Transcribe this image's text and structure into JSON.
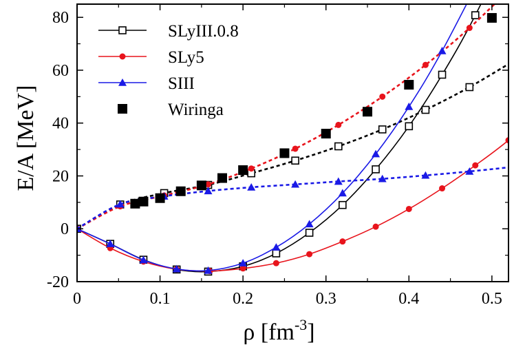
{
  "chart_data": {
    "type": "line",
    "title": "",
    "xlabel": {
      "base": "ρ [fm",
      "sup": "-3",
      "suffix": "]"
    },
    "ylabel": "E/A [MeV]",
    "xlim": [
      0,
      0.52
    ],
    "ylim": [
      -20,
      85
    ],
    "xticks": [
      0,
      0.1,
      0.2,
      0.3,
      0.4,
      0.5
    ],
    "xtick_labels": [
      "0",
      "0.1",
      "0.2",
      "0.3",
      "0.4",
      "0.5"
    ],
    "yticks": [
      -20,
      0,
      20,
      40,
      60,
      80
    ],
    "ytick_labels": [
      "-20",
      "0",
      "20",
      "40",
      "60",
      "80"
    ],
    "legend_position": "top-left",
    "series": [
      {
        "name": "SLyIII.0.8",
        "color": "#000000",
        "marker": "open-square",
        "legend_style": "solid",
        "curves": [
          {
            "style": "solid",
            "x": [
              0,
              0.04,
              0.08,
              0.12,
              0.158,
              0.2,
              0.24,
              0.28,
              0.32,
              0.36,
              0.4,
              0.44,
              0.48
            ],
            "y": [
              0,
              -5.7,
              -11.7,
              -15.4,
              -16.2,
              -14.2,
              -9.3,
              -1.5,
              9.0,
              22.5,
              38.8,
              58.3,
              80.8
            ]
          },
          {
            "style": "dotted",
            "x": [
              0,
              0.052,
              0.105,
              0.158,
              0.21,
              0.263,
              0.315,
              0.368,
              0.42,
              0.473
            ],
            "y": [
              0,
              9.2,
              13.5,
              16.6,
              21.0,
              25.8,
              31.2,
              37.6,
              45.0,
              53.6
            ]
          }
        ]
      },
      {
        "name": "SLy5",
        "color": "#e8141c",
        "marker": "filled-circle",
        "legend_style": "solid",
        "curves": [
          {
            "style": "solid",
            "x": [
              0,
              0.04,
              0.08,
              0.12,
              0.16,
              0.2,
              0.24,
              0.28,
              0.32,
              0.36,
              0.4,
              0.44,
              0.48,
              0.52
            ],
            "y": [
              0,
              -7.3,
              -12.4,
              -15.3,
              -16.0,
              -15.0,
              -13.0,
              -9.6,
              -4.8,
              0.8,
              7.5,
              15.3,
              24.0,
              33.5
            ]
          },
          {
            "style": "dotted",
            "x": [
              0,
              0.052,
              0.105,
              0.158,
              0.21,
              0.263,
              0.315,
              0.368,
              0.42,
              0.473
            ],
            "y": [
              0,
              8.5,
              12.6,
              16.8,
              22.8,
              30.3,
              39.3,
              50.0,
              62.0,
              76.0
            ]
          }
        ]
      },
      {
        "name": "SIII",
        "color": "#1a1ae6",
        "marker": "filled-triangle",
        "legend_style": "solid",
        "curves": [
          {
            "style": "solid",
            "x": [
              0,
              0.04,
              0.08,
              0.12,
              0.158,
              0.2,
              0.24,
              0.28,
              0.32,
              0.36,
              0.4,
              0.44
            ],
            "y": [
              0,
              -5.7,
              -11.8,
              -15.2,
              -15.8,
              -13.0,
              -7.0,
              1.8,
              13.5,
              28.3,
              46.2,
              67.3
            ]
          },
          {
            "style": "dotted",
            "x": [
              0,
              0.052,
              0.105,
              0.158,
              0.21,
              0.263,
              0.315,
              0.368,
              0.42,
              0.473
            ],
            "y": [
              0,
              9.3,
              12.3,
              14.3,
              15.7,
              16.8,
              17.9,
              18.9,
              20.2,
              21.7
            ]
          }
        ]
      },
      {
        "name": "Wiringa",
        "color": "#000000",
        "marker": "filled-square-large",
        "legend_style": "marker-only",
        "points": {
          "x": [
            0.07,
            0.08,
            0.1,
            0.125,
            0.15,
            0.175,
            0.2,
            0.25,
            0.3,
            0.35,
            0.4,
            0.5
          ],
          "y": [
            9.5,
            10.3,
            11.6,
            14.2,
            16.4,
            19.2,
            22.2,
            28.6,
            36.0,
            44.3,
            54.5,
            79.8
          ]
        }
      }
    ]
  }
}
